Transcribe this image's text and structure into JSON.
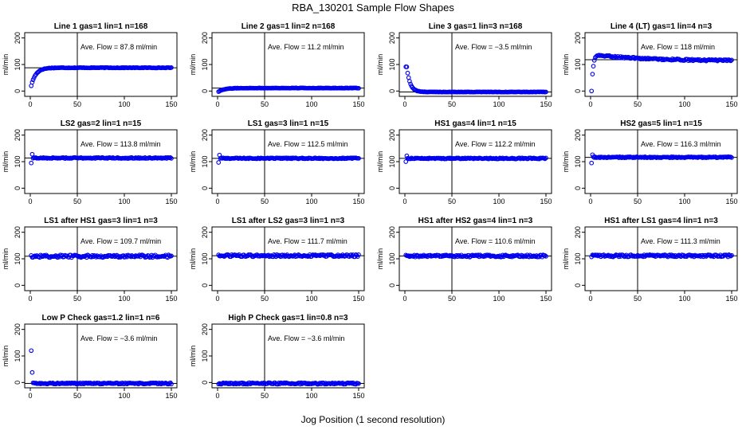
{
  "figure": {
    "title": "RBA_130201  Sample Flow Shapes",
    "xlabel": "Jog Position (1 second resolution)"
  },
  "chart_data": [
    {
      "type": "scatter",
      "title": "Line 1 gas=1 lin=1 n=168",
      "ylabel": "ml/min",
      "annotation": "Ave. Flow =  87.8  ml/min",
      "avg": 87.8,
      "shape": "rise",
      "start": 20,
      "tau": 5,
      "noise": 2,
      "xlim": [
        0,
        150
      ],
      "ylim": [
        -20,
        220
      ],
      "xticks": [
        0,
        50,
        100,
        150
      ],
      "yticks": [
        0,
        100,
        200
      ],
      "vline": 50,
      "hline": 87.8
    },
    {
      "type": "scatter",
      "title": "Line 2 gas=1 lin=2 n=168",
      "ylabel": "ml/min",
      "annotation": "Ave. Flow =  11.2  ml/min",
      "avg": 11.2,
      "shape": "rise",
      "start": -2,
      "tau": 6,
      "noise": 1.5,
      "xlim": [
        0,
        150
      ],
      "ylim": [
        -20,
        220
      ],
      "xticks": [
        0,
        50,
        100,
        150
      ],
      "yticks": [
        0,
        100,
        200
      ],
      "vline": 50,
      "hline": 11.2
    },
    {
      "type": "scatter",
      "title": "Line 3 gas=1 lin=3 n=168",
      "ylabel": "ml/min",
      "annotation": "Ave. Flow =  −3.5  ml/min",
      "avg": -3.5,
      "shape": "decay",
      "start": 92,
      "tau": 3.5,
      "delay": 2,
      "noise": 1.5,
      "xlim": [
        0,
        150
      ],
      "ylim": [
        -20,
        220
      ],
      "xticks": [
        0,
        50,
        100,
        150
      ],
      "yticks": [
        0,
        100,
        200
      ],
      "vline": 50,
      "hline": -3.5
    },
    {
      "type": "scatter",
      "title": "Line 4 (LT) gas=1 lin=4 n=3",
      "ylabel": "ml/min",
      "annotation": "Ave. Flow =  118  ml/min",
      "avg": 118,
      "shape": "overshoot",
      "start": 0,
      "peak": 135,
      "end": 113,
      "noise": 3,
      "xlim": [
        0,
        150
      ],
      "ylim": [
        -20,
        220
      ],
      "xticks": [
        0,
        50,
        100,
        150
      ],
      "yticks": [
        0,
        100,
        200
      ],
      "vline": 50,
      "hline": 118
    },
    {
      "type": "scatter",
      "title": "LS2 gas=2 lin=1 n=15",
      "ylabel": "ml/min",
      "annotation": "Ave. Flow =  113.8  ml/min",
      "avg": 113.8,
      "shape": "step",
      "first": [
        95,
        128
      ],
      "noise": 2,
      "xlim": [
        0,
        150
      ],
      "ylim": [
        -20,
        220
      ],
      "xticks": [
        0,
        50,
        100,
        150
      ],
      "yticks": [
        0,
        100,
        200
      ],
      "vline": 50,
      "hline": 113.8
    },
    {
      "type": "scatter",
      "title": "LS1 gas=3 lin=1 n=15",
      "ylabel": "ml/min",
      "annotation": "Ave. Flow =  112.5  ml/min",
      "avg": 112.5,
      "shape": "step",
      "first": [
        97,
        125
      ],
      "noise": 2,
      "xlim": [
        0,
        150
      ],
      "ylim": [
        -20,
        220
      ],
      "xticks": [
        0,
        50,
        100,
        150
      ],
      "yticks": [
        0,
        100,
        200
      ],
      "vline": 50,
      "hline": 112.5
    },
    {
      "type": "scatter",
      "title": "HS1 gas=4 lin=1 n=15",
      "ylabel": "ml/min",
      "annotation": "Ave. Flow =  112.2  ml/min",
      "avg": 112.2,
      "shape": "step",
      "first": [
        100,
        122
      ],
      "noise": 2,
      "xlim": [
        0,
        150
      ],
      "ylim": [
        -20,
        220
      ],
      "xticks": [
        0,
        50,
        100,
        150
      ],
      "yticks": [
        0,
        100,
        200
      ],
      "vline": 50,
      "hline": 112.2
    },
    {
      "type": "scatter",
      "title": "HS2 gas=5 lin=1 n=15",
      "ylabel": "ml/min",
      "annotation": "Ave. Flow =  116.3  ml/min",
      "avg": 116.3,
      "shape": "step",
      "first": [
        95,
        126
      ],
      "noise": 2,
      "xlim": [
        0,
        150
      ],
      "ylim": [
        -20,
        220
      ],
      "xticks": [
        0,
        50,
        100,
        150
      ],
      "yticks": [
        0,
        100,
        200
      ],
      "vline": 50,
      "hline": 116.3
    },
    {
      "type": "scatter",
      "title": "LS1 after HS1 gas=3 lin=1 n=3",
      "ylabel": "ml/min",
      "annotation": "Ave. Flow =  109.7  ml/min",
      "avg": 109.7,
      "shape": "flat",
      "noise": 5,
      "xlim": [
        0,
        150
      ],
      "ylim": [
        -20,
        220
      ],
      "xticks": [
        0,
        50,
        100,
        150
      ],
      "yticks": [
        0,
        100,
        200
      ],
      "vline": 50,
      "hline": 109.7
    },
    {
      "type": "scatter",
      "title": "LS1 after LS2 gas=3 lin=1 n=3",
      "ylabel": "ml/min",
      "annotation": "Ave. Flow =  111.7  ml/min",
      "avg": 111.7,
      "shape": "flat",
      "noise": 4,
      "xlim": [
        0,
        150
      ],
      "ylim": [
        -20,
        220
      ],
      "xticks": [
        0,
        50,
        100,
        150
      ],
      "yticks": [
        0,
        100,
        200
      ],
      "vline": 50,
      "hline": 111.7
    },
    {
      "type": "scatter",
      "title": "HS1 after HS2 gas=4 lin=1 n=3",
      "ylabel": "ml/min",
      "annotation": "Ave. Flow =  110.6  ml/min",
      "avg": 110.6,
      "shape": "flat",
      "noise": 4,
      "xlim": [
        0,
        150
      ],
      "ylim": [
        -20,
        220
      ],
      "xticks": [
        0,
        50,
        100,
        150
      ],
      "yticks": [
        0,
        100,
        200
      ],
      "vline": 50,
      "hline": 110.6
    },
    {
      "type": "scatter",
      "title": "HS1 after LS1 gas=4 lin=1 n=3",
      "ylabel": "ml/min",
      "annotation": "Ave. Flow =  111.3  ml/min",
      "avg": 111.3,
      "shape": "flat",
      "noise": 4,
      "xlim": [
        0,
        150
      ],
      "ylim": [
        -20,
        220
      ],
      "xticks": [
        0,
        50,
        100,
        150
      ],
      "yticks": [
        0,
        100,
        200
      ],
      "vline": 50,
      "hline": 111.3
    },
    {
      "type": "scatter",
      "title": "Low P Check gas=1.2 lin=1 n=6",
      "ylabel": "ml/min",
      "annotation": "Ave. Flow =  −3.6  ml/min",
      "avg": -3.6,
      "shape": "spike",
      "first": [
        120,
        38
      ],
      "noise": 2.5,
      "xlim": [
        0,
        150
      ],
      "ylim": [
        -20,
        220
      ],
      "xticks": [
        0,
        50,
        100,
        150
      ],
      "yticks": [
        0,
        100,
        200
      ],
      "vline": 50,
      "hline": -3.6
    },
    {
      "type": "scatter",
      "title": "High P Check gas=1 lin=0.8 n=3",
      "ylabel": "ml/min",
      "annotation": "Ave. Flow =  −3.6  ml/min",
      "avg": -3.6,
      "shape": "flat",
      "noise": 3,
      "xlim": [
        0,
        150
      ],
      "ylim": [
        -20,
        220
      ],
      "xticks": [
        0,
        50,
        100,
        150
      ],
      "yticks": [
        0,
        100,
        200
      ],
      "vline": 50,
      "hline": -3.6
    }
  ],
  "colors": {
    "points": "#0000ee",
    "axes": "#000000",
    "text": "#000000"
  }
}
